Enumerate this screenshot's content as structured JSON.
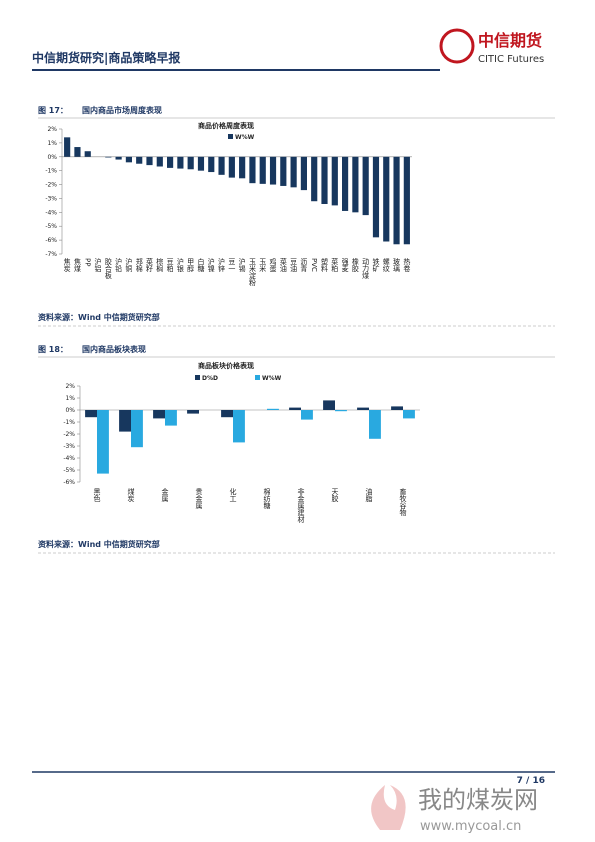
{
  "header": {
    "title": "中信期货研究|商品策略早报"
  },
  "logo": {
    "name": "中信期货",
    "english": "CITIC Futures"
  },
  "figures": [
    {
      "label": "图 17：",
      "caption": "国内商品市场周度表现",
      "source": "资料来源：Wind 中信期货研究部"
    },
    {
      "label": "图 18：",
      "caption": "国内商品板块表现",
      "source": "资料来源：Wind 中信期货研究部"
    }
  ],
  "chart_data": [
    {
      "type": "bar",
      "title": "商品价格周度表现",
      "categories": [
        "焦炭",
        "焦煤",
        "PP",
        "沪铝",
        "胶合板",
        "沪铅",
        "沪铜",
        "郑棉",
        "菜籽",
        "棕榈",
        "豆粕",
        "沪银",
        "甲醇",
        "白糖",
        "沪镍",
        "沪锌",
        "豆一",
        "沪锡",
        "玉米淀粉",
        "玉米",
        "鸡蛋",
        "菜油",
        "豆油",
        "沥青",
        "PVC",
        "塑料",
        "菜粕",
        "强麦",
        "橡胶",
        "动力煤",
        "铁矿",
        "螺纹",
        "玻璃",
        "热卷"
      ],
      "series": [
        {
          "name": "W%W",
          "color": "#17375e",
          "values": [
            1.4,
            0.7,
            0.4,
            0.0,
            -0.05,
            -0.2,
            -0.4,
            -0.5,
            -0.6,
            -0.7,
            -0.8,
            -0.85,
            -0.9,
            -1.0,
            -1.1,
            -1.3,
            -1.5,
            -1.55,
            -1.9,
            -1.95,
            -2.0,
            -2.1,
            -2.2,
            -2.4,
            -3.2,
            -3.4,
            -3.5,
            -3.9,
            -4.0,
            -4.2,
            -5.8,
            -6.1,
            -6.3,
            -6.3
          ]
        }
      ],
      "ylim": [
        -7,
        2
      ],
      "yticks": [
        {
          "value": 2,
          "label": "2%"
        },
        {
          "value": 1,
          "label": "1%"
        },
        {
          "value": 0,
          "label": "0%"
        },
        {
          "value": -1,
          "label": "-1%"
        },
        {
          "value": -2,
          "label": "-2%"
        },
        {
          "value": -3,
          "label": "-3%"
        },
        {
          "value": -4,
          "label": "-4%"
        },
        {
          "value": -5,
          "label": "-5%"
        },
        {
          "value": -6,
          "label": "-6%"
        },
        {
          "value": -7,
          "label": "-7%"
        }
      ]
    },
    {
      "type": "bar",
      "title": "商品板块价格表现",
      "categories": [
        "黑色",
        "煤炭",
        "金属",
        "贵金属",
        "化工",
        "棉纺糖",
        "非金属建材",
        "天胶",
        "油脂",
        "畜牧谷物"
      ],
      "series": [
        {
          "name": "D%D",
          "color": "#17375e",
          "values": [
            -0.6,
            -1.8,
            -0.7,
            -0.3,
            -0.6,
            0.0,
            0.2,
            0.8,
            0.2,
            0.3
          ]
        },
        {
          "name": "W%W",
          "color": "#29a9e0",
          "values": [
            -5.3,
            -3.1,
            -1.3,
            0.0,
            -2.7,
            0.1,
            -0.8,
            -0.1,
            -2.4,
            -0.7
          ]
        }
      ],
      "ylim": [
        -6,
        2
      ],
      "yticks": [
        {
          "value": 2,
          "label": "2%"
        },
        {
          "value": 1,
          "label": "1%"
        },
        {
          "value": 0,
          "label": "0%"
        },
        {
          "value": -1,
          "label": "-1%"
        },
        {
          "value": -2,
          "label": "-2%"
        },
        {
          "value": -3,
          "label": "-3%"
        },
        {
          "value": -4,
          "label": "-4%"
        },
        {
          "value": -5,
          "label": "-5%"
        },
        {
          "value": -6,
          "label": "-6%"
        }
      ]
    }
  ],
  "footer": {
    "page": "7 / 16"
  },
  "watermark": {
    "name": "我的煤炭网",
    "url": "www.mycoal.cn"
  }
}
